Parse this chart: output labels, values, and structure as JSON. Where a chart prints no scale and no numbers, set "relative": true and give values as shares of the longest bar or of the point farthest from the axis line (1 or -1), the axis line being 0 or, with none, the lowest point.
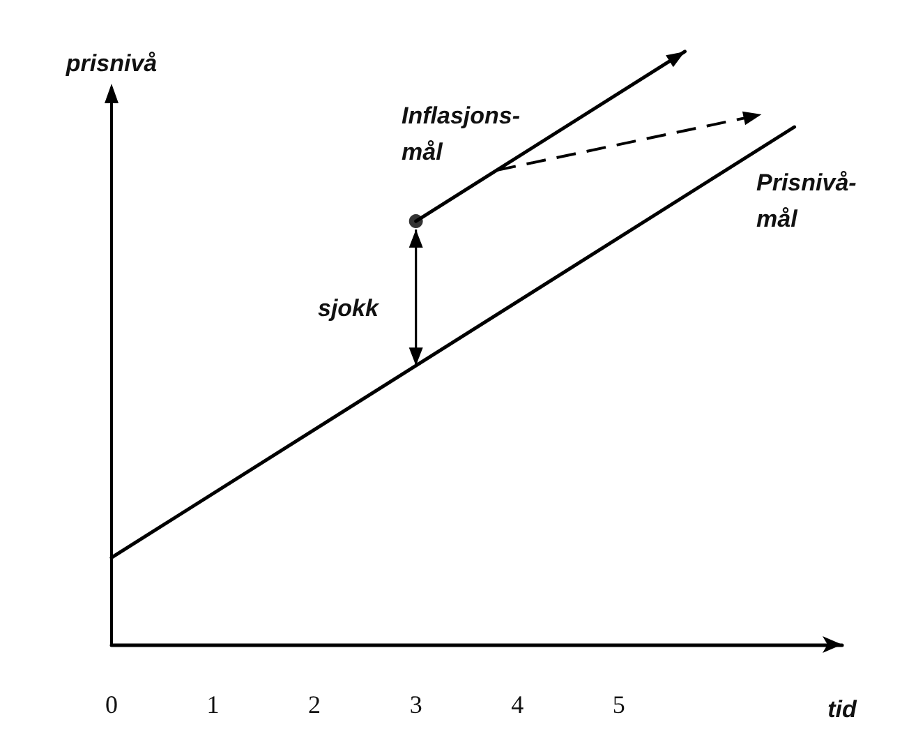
{
  "chart_data": {
    "type": "line",
    "relative": true,
    "ylabel": "prisnivå",
    "xlabel": "tid",
    "xlim": [
      0,
      7.2
    ],
    "xticks": [
      0,
      1,
      2,
      3,
      4,
      5
    ],
    "grid": false,
    "series": [
      {
        "color": "#000000",
        "x": [
          0,
          6.73
        ],
        "values": [
          0.168,
          1.0
        ]
      },
      {
        "type": "scatter",
        "color": "#000000",
        "marker": "circle",
        "x": [
          3
        ],
        "values": [
          0.818
        ]
      }
    ],
    "annotations": [
      "Inflasjons-\nmål",
      {
        "text": "Prisnivå-\nmål",
        "x": 6.3,
        "y": 0.944
      },
      "sjokk"
    ]
  }
}
